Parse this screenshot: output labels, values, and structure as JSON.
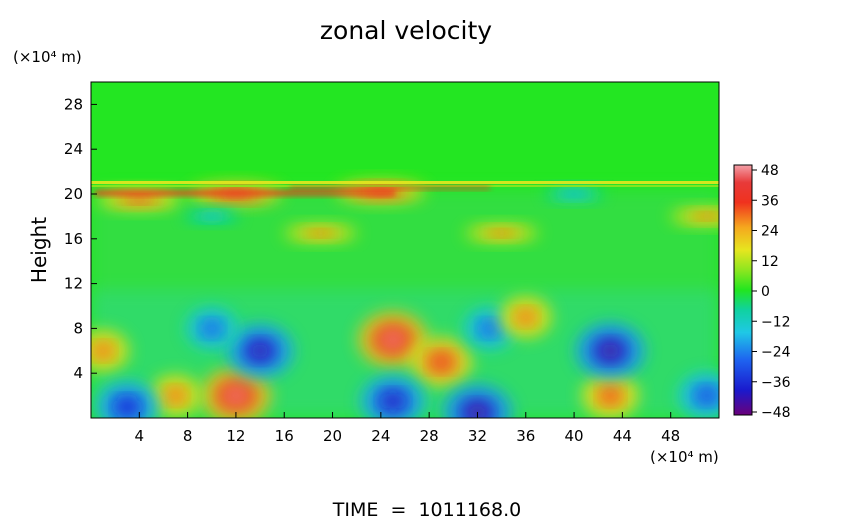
{
  "chart_data": {
    "type": "heatmap",
    "title": "zonal velocity",
    "ylabel": "Height",
    "y_unit_label": "(×10⁴ m)",
    "x_unit_label": "(×10⁴ m)",
    "footer": "TIME  =  1011168.0",
    "xlim": [
      0,
      52
    ],
    "ylim": [
      0,
      30
    ],
    "x_ticks": [
      "4",
      "8",
      "12",
      "16",
      "20",
      "24",
      "28",
      "32",
      "36",
      "40",
      "44",
      "48"
    ],
    "y_ticks": [
      "4",
      "8",
      "12",
      "16",
      "20",
      "24",
      "28"
    ],
    "colorbar": {
      "min": -48,
      "max": 48,
      "tick_labels": [
        "48",
        "36",
        "24",
        "12",
        "0",
        "−12",
        "−24",
        "−36",
        "−48"
      ],
      "tick_values": [
        48,
        36,
        24,
        12,
        0,
        -12,
        -24,
        -36,
        -48
      ]
    },
    "field_features": [
      {
        "x": 25,
        "y": 7,
        "value": 46
      },
      {
        "x": 29,
        "y": 5,
        "value": 38
      },
      {
        "x": 12,
        "y": 2,
        "value": 46
      },
      {
        "x": 7,
        "y": 2,
        "value": 30
      },
      {
        "x": 43,
        "y": 2,
        "value": 34
      },
      {
        "x": 1,
        "y": 6,
        "value": 30
      },
      {
        "x": 14,
        "y": 6,
        "value": -44
      },
      {
        "x": 10,
        "y": 8,
        "value": -30
      },
      {
        "x": 3,
        "y": 1,
        "value": -40
      },
      {
        "x": 25,
        "y": 1.5,
        "value": -42
      },
      {
        "x": 32,
        "y": 0.5,
        "value": -46
      },
      {
        "x": 43,
        "y": 6,
        "value": -46
      },
      {
        "x": 33,
        "y": 8,
        "value": -30
      },
      {
        "x": 51,
        "y": 2,
        "value": -34
      },
      {
        "x": 12,
        "y": 20,
        "value": 42
      },
      {
        "x": 24,
        "y": 20.2,
        "value": 40
      },
      {
        "x": 4,
        "y": 19.5,
        "value": 36
      },
      {
        "x": 34,
        "y": 16.5,
        "value": 30
      },
      {
        "x": 19,
        "y": 16.5,
        "value": 30
      },
      {
        "x": 51,
        "y": 18,
        "value": 30
      },
      {
        "x": 40,
        "y": 20,
        "value": -20
      },
      {
        "x": 10,
        "y": 18,
        "value": -18
      },
      {
        "x": 36,
        "y": 9,
        "value": 30
      }
    ]
  }
}
